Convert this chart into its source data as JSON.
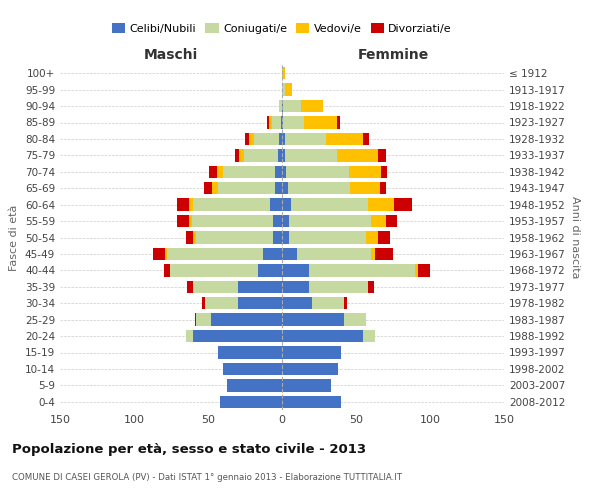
{
  "age_groups": [
    "0-4",
    "5-9",
    "10-14",
    "15-19",
    "20-24",
    "25-29",
    "30-34",
    "35-39",
    "40-44",
    "45-49",
    "50-54",
    "55-59",
    "60-64",
    "65-69",
    "70-74",
    "75-79",
    "80-84",
    "85-89",
    "90-94",
    "95-99",
    "100+"
  ],
  "birth_years": [
    "2008-2012",
    "2003-2007",
    "1998-2002",
    "1993-1997",
    "1988-1992",
    "1983-1987",
    "1978-1982",
    "1973-1977",
    "1968-1972",
    "1963-1967",
    "1958-1962",
    "1953-1957",
    "1948-1952",
    "1943-1947",
    "1938-1942",
    "1933-1937",
    "1928-1932",
    "1923-1927",
    "1918-1922",
    "1913-1917",
    "≤ 1912"
  ],
  "colors": {
    "celibi": "#4472c4",
    "coniugati": "#c5d9a0",
    "vedovi": "#ffc000",
    "divorziati": "#cc0000"
  },
  "males": {
    "celibi": [
      42,
      37,
      40,
      43,
      60,
      48,
      30,
      30,
      16,
      13,
      6,
      6,
      8,
      5,
      5,
      3,
      2,
      1,
      0,
      0,
      0
    ],
    "coniugati": [
      0,
      0,
      0,
      0,
      5,
      10,
      22,
      30,
      60,
      65,
      52,
      55,
      52,
      38,
      35,
      23,
      17,
      6,
      2,
      0,
      0
    ],
    "vedovi": [
      0,
      0,
      0,
      0,
      0,
      0,
      0,
      0,
      0,
      1,
      2,
      2,
      3,
      4,
      4,
      3,
      3,
      2,
      0,
      0,
      0
    ],
    "divorziati": [
      0,
      0,
      0,
      0,
      0,
      1,
      2,
      4,
      4,
      8,
      5,
      8,
      8,
      6,
      5,
      3,
      3,
      1,
      0,
      0,
      0
    ]
  },
  "females": {
    "celibi": [
      40,
      33,
      38,
      40,
      55,
      42,
      20,
      18,
      18,
      10,
      5,
      5,
      6,
      4,
      3,
      2,
      2,
      1,
      1,
      0,
      0
    ],
    "coniugati": [
      0,
      0,
      0,
      0,
      8,
      15,
      22,
      40,
      72,
      50,
      52,
      55,
      52,
      42,
      42,
      35,
      28,
      14,
      12,
      2,
      0
    ],
    "vedovi": [
      0,
      0,
      0,
      0,
      0,
      0,
      0,
      0,
      2,
      3,
      8,
      10,
      18,
      20,
      22,
      28,
      25,
      22,
      15,
      5,
      2
    ],
    "divorziati": [
      0,
      0,
      0,
      0,
      0,
      0,
      2,
      4,
      8,
      12,
      8,
      8,
      12,
      4,
      4,
      5,
      4,
      2,
      0,
      0,
      0
    ]
  },
  "xlim": 150,
  "title": "Popolazione per età, sesso e stato civile - 2013",
  "subtitle": "COMUNE DI CASEI GEROLA (PV) - Dati ISTAT 1° gennaio 2013 - Elaborazione TUTTITALIA.IT",
  "ylabel_left": "Fasce di età",
  "ylabel_right": "Anni di nascita",
  "xlabel_left": "Maschi",
  "xlabel_right": "Femmine"
}
